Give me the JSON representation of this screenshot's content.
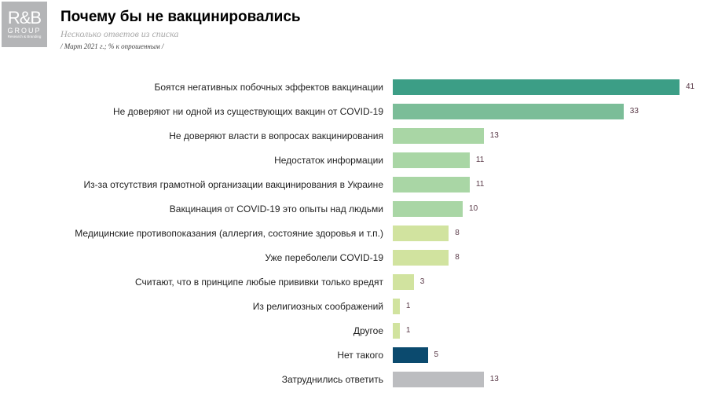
{
  "logo": {
    "main": "R&B",
    "group": "GROUP",
    "tagline": "Research & Branding"
  },
  "header": {
    "title": "Почему бы не вакцинировались",
    "subtitle": "Несколько ответов из списка",
    "note": "/ Март 2021 г.; % к опрошенным /"
  },
  "chart_data": {
    "type": "bar",
    "orientation": "horizontal",
    "categories": [
      "Боятся негативных побочных эффектов вакцинации",
      "Не доверяют ни одной из существующих вакцин от COVID-19",
      "Не доверяют власти в вопросах вакцинирования",
      "Недостаток информации",
      "Из-за отсутствия грамотной организации вакцинирования в Украине",
      "Вакцинация от COVID-19 это опыты над людьми",
      "Медицинские противопоказания (аллергия, состояние здоровья и т.п.)",
      "Уже переболели COVID-19",
      "Считают, что в принципе любые прививки только вредят",
      "Из религиозных соображений",
      "Другое",
      "Нет такого",
      "Затруднились ответить"
    ],
    "values": [
      41,
      33,
      13,
      11,
      11,
      10,
      8,
      8,
      3,
      1,
      1,
      5,
      13
    ],
    "colors": [
      "#3c9e86",
      "#7bbd98",
      "#a9d6a5",
      "#a9d6a5",
      "#a9d6a5",
      "#a9d6a5",
      "#d1e39f",
      "#d1e39f",
      "#d1e39f",
      "#d1e39f",
      "#d1e39f",
      "#0b4a6e",
      "#bcbdc0"
    ],
    "xlim": [
      0,
      41
    ],
    "grid": false
  }
}
